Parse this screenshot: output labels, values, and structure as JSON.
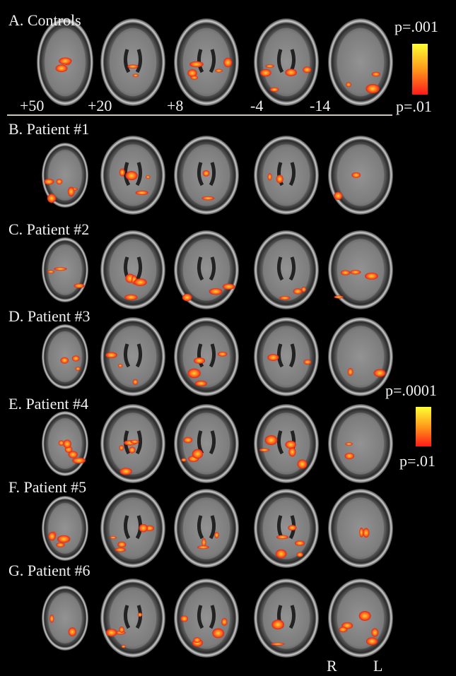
{
  "rows": [
    {
      "label": "A. Controls"
    },
    {
      "label": "B. Patient #1"
    },
    {
      "label": "C. Patient #2"
    },
    {
      "label": "D. Patient #3"
    },
    {
      "label": "E. Patient #4"
    },
    {
      "label": "F. Patient #5"
    },
    {
      "label": "G. Patient #6"
    }
  ],
  "slice_labels": [
    "+50",
    "+20",
    "+8",
    "-4",
    "-14"
  ],
  "colorbars": [
    {
      "top": "p=.001",
      "bottom": "p=.01"
    },
    {
      "top": "p=.0001",
      "bottom": "p=.01"
    }
  ],
  "orientation": {
    "right": "R",
    "left": "L"
  }
}
